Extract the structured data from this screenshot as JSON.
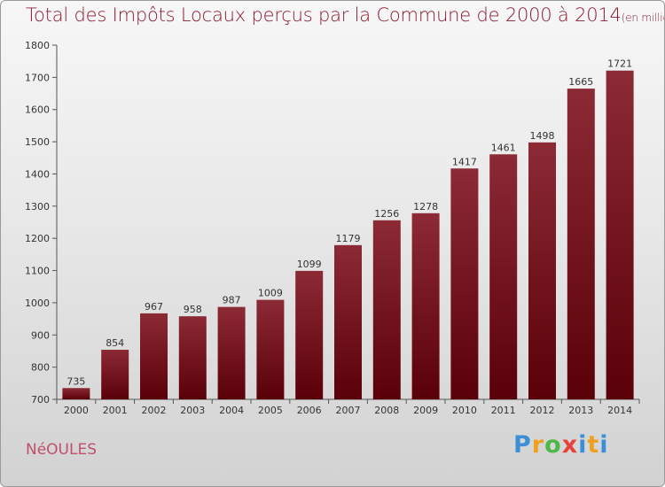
{
  "title": {
    "main": "Total des Impôts Locaux perçus par la Commune de 2000 à 2014",
    "unit": "(en milliers d'€)"
  },
  "commune": "NéOULES",
  "brand": {
    "name": "Proxiti",
    "letters": [
      "P",
      "r",
      "o",
      "x",
      "i",
      "t",
      "i"
    ]
  },
  "chart_data": {
    "type": "bar",
    "categories": [
      "2000",
      "2001",
      "2002",
      "2003",
      "2004",
      "2005",
      "2006",
      "2007",
      "2008",
      "2009",
      "2010",
      "2011",
      "2012",
      "2013",
      "2014"
    ],
    "values": [
      735,
      854,
      967,
      958,
      987,
      1009,
      1099,
      1179,
      1256,
      1278,
      1417,
      1461,
      1498,
      1665,
      1721
    ],
    "ylim": [
      700,
      1800
    ],
    "yticks": [
      700,
      800,
      900,
      1000,
      1100,
      1200,
      1300,
      1400,
      1500,
      1600,
      1700,
      1800
    ],
    "bar_color_top": "#8c2a36",
    "bar_color_bottom": "#5a0008",
    "grid": false
  }
}
